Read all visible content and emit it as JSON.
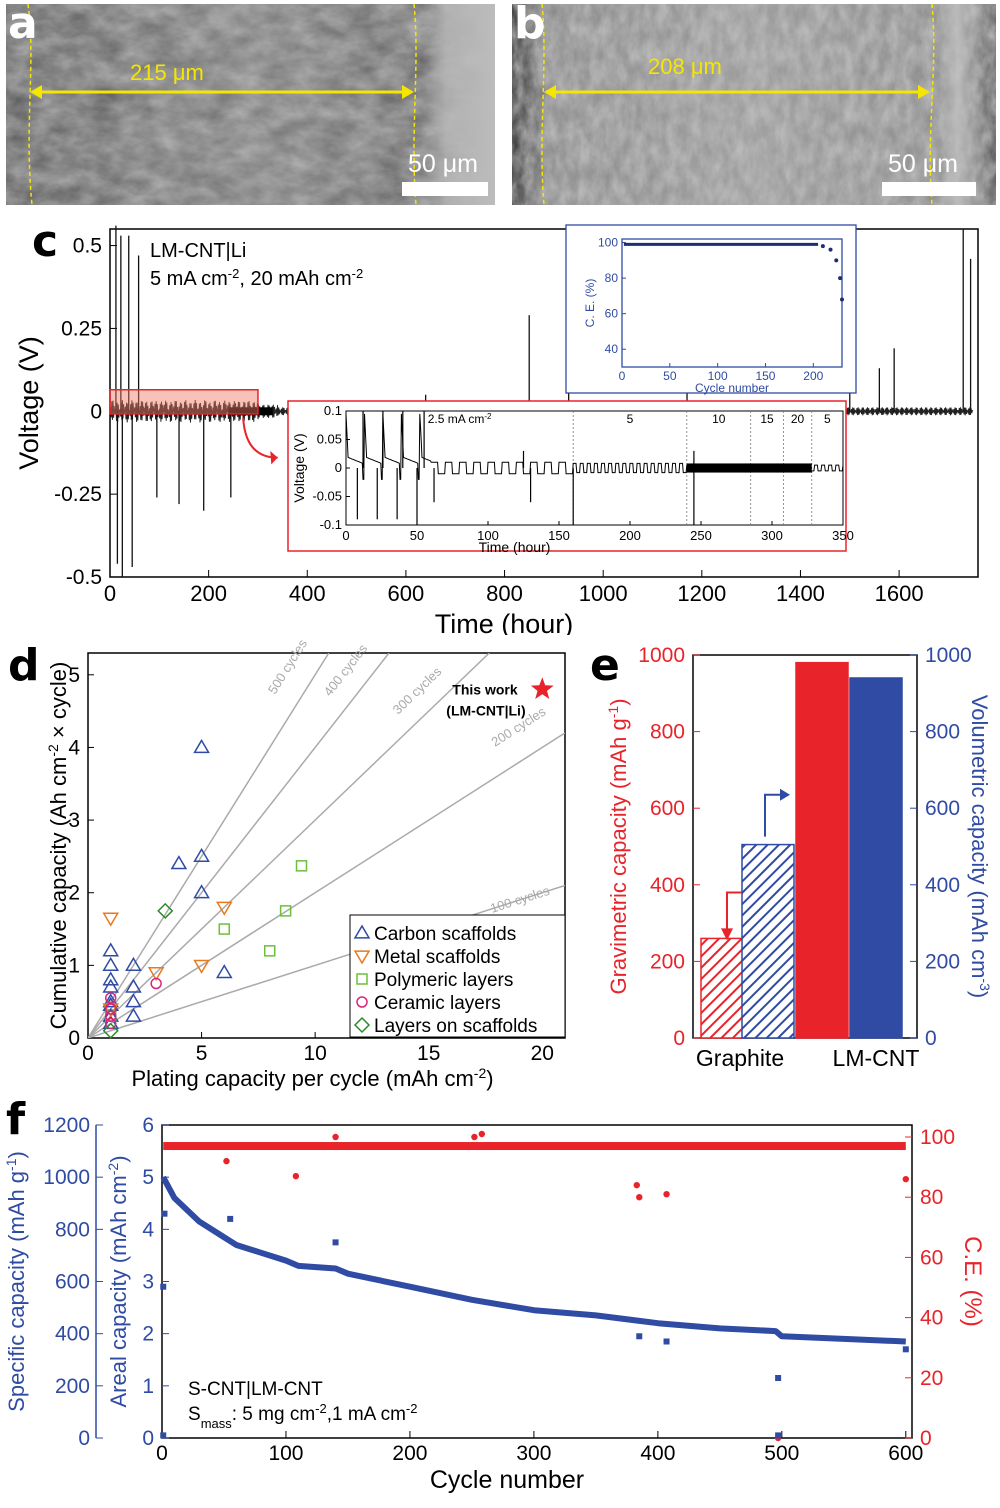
{
  "panel_labels": {
    "a": "a",
    "b": "b",
    "c": "c",
    "d": "d",
    "e": "e",
    "f": "f"
  },
  "sem_a": {
    "measure": "215 μm",
    "scale": "50 μm"
  },
  "sem_b": {
    "measure": "208 μm",
    "scale": "50 μm"
  },
  "colors": {
    "yellow": "#f5e600",
    "red": "#e8242a",
    "blue": "#2f4ba3",
    "green": "#6cbf3c",
    "orange": "#e87a1c",
    "magenta": "#d9267a",
    "dkgreen": "#2c8a2c"
  },
  "chart_data": [
    {
      "id": "c",
      "type": "line",
      "title": "",
      "annotation": {
        "cell": "LM-CNT|Li",
        "cond_a": "5 mA cm",
        "sup_a": "-2",
        "cond_b": ", 20 mAh cm",
        "sup_b": "-2"
      },
      "xlabel": "Time (hour)",
      "ylabel": "Voltage (V)",
      "xlim": [
        0,
        1760
      ],
      "ylim": [
        -0.5,
        0.55
      ],
      "xticks": [
        0,
        200,
        400,
        600,
        800,
        1000,
        1200,
        1400,
        1600
      ],
      "yticks": [
        0.5,
        0.25,
        0,
        -0.25,
        -0.5
      ],
      "ytick_labels": [
        "0.5",
        "0.25",
        "0",
        "-0.25",
        "-0.5"
      ],
      "spikes": [
        {
          "x": 12,
          "y": 0.56
        },
        {
          "x": 22,
          "y": 0.53
        },
        {
          "x": 38,
          "y": 0.53
        },
        {
          "x": 58,
          "y": 0.47
        },
        {
          "x": 850,
          "y": 0.29
        },
        {
          "x": 930,
          "y": 0.24
        },
        {
          "x": 1170,
          "y": 0.12
        },
        {
          "x": 1560,
          "y": 0.13
        },
        {
          "x": 1590,
          "y": 0.19
        },
        {
          "x": 1730,
          "y": 0.55
        },
        {
          "x": 1745,
          "y": 0.46
        },
        {
          "x": 640,
          "y": 0.05
        },
        {
          "x": 1500,
          "y": 0.07
        }
      ],
      "dips": [
        {
          "x": 15,
          "y": -0.46
        },
        {
          "x": 25,
          "y": -0.5
        },
        {
          "x": 45,
          "y": -0.47
        },
        {
          "x": 95,
          "y": -0.26
        },
        {
          "x": 140,
          "y": -0.28
        },
        {
          "x": 190,
          "y": -0.3
        },
        {
          "x": 245,
          "y": -0.26
        }
      ],
      "inset_ce": {
        "xlabel": "Cycle number",
        "ylabel": "C. E. (%)",
        "xticks": [
          0,
          50,
          100,
          150,
          200
        ],
        "yticks": [
          40,
          60,
          80,
          100
        ],
        "xlim": [
          0,
          230
        ],
        "ylim": [
          30,
          102
        ],
        "plateau": 99,
        "tail": [
          {
            "x": 210,
            "y": 98
          },
          {
            "x": 218,
            "y": 96
          },
          {
            "x": 224,
            "y": 90
          },
          {
            "x": 228,
            "y": 80
          },
          {
            "x": 230,
            "y": 68
          }
        ]
      },
      "inset_v": {
        "xlabel": "Time (hour)",
        "ylabel": "Voltage (V)",
        "xticks": [
          0,
          50,
          100,
          150,
          200,
          250,
          300,
          350
        ],
        "yticks": [
          0.1,
          0.05,
          0,
          -0.05,
          -0.1
        ],
        "ytick_labels": [
          "0.1",
          "0.05",
          "0",
          "-0.05",
          "-0.1"
        ],
        "xlim": [
          0,
          350
        ],
        "ylim": [
          -0.1,
          0.1
        ],
        "segments": [
          {
            "label": "2.5 mA cm",
            "sup": "-2",
            "start": 0,
            "end": 160
          },
          {
            "label": "5",
            "start": 160,
            "end": 240
          },
          {
            "label": "10",
            "start": 240,
            "end": 285
          },
          {
            "label": "15",
            "start": 285,
            "end": 308
          },
          {
            "label": "20",
            "start": 308,
            "end": 328
          },
          {
            "label": "5",
            "start": 328,
            "end": 350
          }
        ]
      }
    },
    {
      "id": "d",
      "type": "scatter",
      "xlabel": "Plating capacity per cycle (mAh cm",
      "xlabel_sup": "-2",
      "xlabel_end": ")",
      "ylabel": "Cumulative capacity (Ah cm",
      "ylabel_sup": "-2",
      "ylabel_end": " × cycle)",
      "xlim": [
        0,
        21
      ],
      "ylim": [
        0,
        5.3
      ],
      "xticks": [
        0,
        5,
        10,
        15,
        20
      ],
      "yticks": [
        0,
        1,
        2,
        3,
        4,
        5
      ],
      "guides": [
        {
          "label": "500 cycles",
          "cycles": 500
        },
        {
          "label": "400 cycles",
          "cycles": 400
        },
        {
          "label": "300 cycles",
          "cycles": 300
        },
        {
          "label": "200 cycles",
          "cycles": 200
        },
        {
          "label": "100 cycles",
          "cycles": 100
        }
      ],
      "this_work": {
        "label1": "This work",
        "label2": "(LM-CNT|Li)",
        "x": 20,
        "y": 4.8
      },
      "series": [
        {
          "name": "Carbon scaffolds",
          "marker": "tri-up",
          "color": "#2f4ba3",
          "points": [
            [
              1,
              1.2
            ],
            [
              1,
              1.0
            ],
            [
              1,
              0.8
            ],
            [
              1,
              0.7
            ],
            [
              1,
              0.5
            ],
            [
              1,
              0.45
            ],
            [
              1,
              0.3
            ],
            [
              1,
              0.2
            ],
            [
              2,
              1.0
            ],
            [
              2,
              0.7
            ],
            [
              2,
              0.5
            ],
            [
              2,
              0.3
            ],
            [
              4,
              2.4
            ],
            [
              5,
              4.0
            ],
            [
              5,
              2.5
            ],
            [
              5,
              2.0
            ],
            [
              6,
              0.9
            ]
          ]
        },
        {
          "name": "Metal scaffolds",
          "marker": "tri-down",
          "color": "#e87a1c",
          "points": [
            [
              1,
              1.65
            ],
            [
              1,
              0.4
            ],
            [
              3,
              0.9
            ],
            [
              5,
              1.0
            ],
            [
              6,
              1.8
            ]
          ]
        },
        {
          "name": "Polymeric layers",
          "marker": "square",
          "color": "#6cbf3c",
          "points": [
            [
              6,
              1.5
            ],
            [
              8,
              1.2
            ],
            [
              8.7,
              1.75
            ],
            [
              9.4,
              2.37
            ],
            [
              1,
              0.3
            ]
          ]
        },
        {
          "name": "Ceramic layers",
          "marker": "circle",
          "color": "#d9267a",
          "points": [
            [
              1,
              0.55
            ],
            [
              1,
              0.4
            ],
            [
              1,
              0.3
            ],
            [
              1,
              0.2
            ],
            [
              3,
              0.75
            ]
          ]
        },
        {
          "name": "Layers on scaffolds",
          "marker": "diamond",
          "color": "#2c8a2c",
          "points": [
            [
              3.4,
              1.75
            ],
            [
              1,
              0.1
            ]
          ]
        }
      ]
    },
    {
      "id": "e",
      "type": "bar",
      "categories": [
        "Graphite",
        "LM-CNT"
      ],
      "series": [
        {
          "name": "Gravimetric capacity",
          "values": [
            260,
            980
          ],
          "color": "#e8242a"
        },
        {
          "name": "Volumetric capacity",
          "values": [
            505,
            940
          ],
          "color": "#2f4ba3"
        }
      ],
      "ylabel_left": "Gravimetric capacity (mAh g",
      "ylabel_left_sup": "-1",
      "ylabel_left_end": ")",
      "ylabel_right": "Volumetric capacity (mAh cm",
      "ylabel_right_sup": "-3",
      "ylabel_right_end": ")",
      "ylim": [
        0,
        1000
      ],
      "yticks": [
        0,
        200,
        400,
        600,
        800,
        1000
      ]
    },
    {
      "id": "f",
      "type": "scatter",
      "xlabel": "Cycle number",
      "ylabel_outer": "Specific capacity (mAh g",
      "ylabel_outer_sup": "-1",
      "ylabel_outer_end": ")",
      "ylabel_inner": "Areal capacity (mAh cm",
      "ylabel_inner_sup": "-2",
      "ylabel_inner_end": ")",
      "ylabel_right": "C.E. (%)",
      "xlim": [
        0,
        605
      ],
      "xticks": [
        0,
        100,
        200,
        300,
        400,
        500,
        600
      ],
      "y_outer_ticks": [
        0,
        200,
        400,
        600,
        800,
        1000,
        1200
      ],
      "y_inner_ticks": [
        0,
        1,
        2,
        3,
        4,
        5,
        6
      ],
      "y_right_ticks": [
        0,
        20,
        40,
        60,
        80,
        100
      ],
      "annotation": {
        "line1": "S-CNT|LM-CNT",
        "line2a": "S",
        "line2sub": "mass",
        "line2b": ": 5 mg cm",
        "line2sup": "-2",
        "line2c": ",1 mA cm",
        "line2sup2": "-2"
      },
      "capacity_curve": [
        [
          1,
          5.0
        ],
        [
          10,
          4.6
        ],
        [
          30,
          4.15
        ],
        [
          50,
          3.85
        ],
        [
          60,
          3.7
        ],
        [
          80,
          3.55
        ],
        [
          100,
          3.4
        ],
        [
          110,
          3.3
        ],
        [
          140,
          3.25
        ],
        [
          150,
          3.15
        ],
        [
          200,
          2.9
        ],
        [
          250,
          2.65
        ],
        [
          300,
          2.45
        ],
        [
          350,
          2.35
        ],
        [
          400,
          2.2
        ],
        [
          450,
          2.1
        ],
        [
          495,
          2.05
        ],
        [
          500,
          1.95
        ],
        [
          550,
          1.9
        ],
        [
          600,
          1.85
        ]
      ],
      "capacity_outliers": [
        [
          1,
          2.9
        ],
        [
          2,
          4.3
        ],
        [
          55,
          4.2
        ],
        [
          140,
          3.75
        ],
        [
          385,
          1.95
        ],
        [
          407,
          1.85
        ],
        [
          497,
          1.15
        ],
        [
          600,
          1.7
        ],
        [
          1,
          0.05
        ],
        [
          497,
          0.05
        ]
      ],
      "ce_plateau": 97,
      "ce_outliers": [
        [
          52,
          92
        ],
        [
          108,
          87
        ],
        [
          383,
          84
        ],
        [
          385,
          80
        ],
        [
          407,
          81
        ],
        [
          600,
          86
        ],
        [
          140,
          100
        ],
        [
          252,
          100
        ],
        [
          258,
          101
        ],
        [
          497,
          0
        ]
      ]
    }
  ]
}
